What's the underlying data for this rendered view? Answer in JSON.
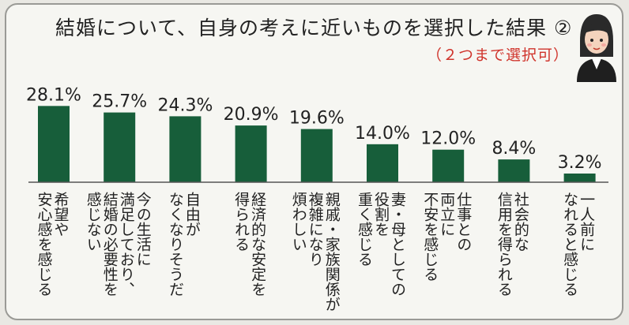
{
  "title": "結婚について、自身の考えに近いものを選択した結果 ②",
  "subtitle": "（２つまで選択可）",
  "illustration": "person-illustration",
  "chart_data": {
    "type": "bar",
    "title": "結婚について、自身の考えに近いものを選択した結果 ②",
    "subtitle": "（２つまで選択可）",
    "xlabel": "",
    "ylabel": "",
    "ylim": [
      0,
      30
    ],
    "grid": false,
    "legend": "none",
    "bar_color": "#175e3a",
    "categories": [
      "希望や安心感を感じる",
      "今の生活に満足しており、結婚の必要性を感じない",
      "自由がなくなりそうだ",
      "経済的な安定を得られる",
      "親戚・家族関係が複雑になり煩わしい",
      "妻・母としての役割を重く感じる",
      "仕事との両立に不安を感じる",
      "社会的な信用を得られる",
      "一人前になれると感じる"
    ],
    "values": [
      28.1,
      25.7,
      24.3,
      20.9,
      19.6,
      14.0,
      12.0,
      8.4,
      3.2
    ],
    "value_labels": [
      "28.1%",
      "25.7%",
      "24.3%",
      "20.9%",
      "19.6%",
      "14.0%",
      "12.0%",
      "8.4%",
      "3.2%"
    ],
    "label_columns": [
      [
        "希望や",
        "安心感を感じる"
      ],
      [
        "今の生活に",
        "満足しており、",
        "結婚の必要性を",
        "感じない"
      ],
      [
        "自由が",
        "なくなりそうだ"
      ],
      [
        "経済的な安定を",
        "得られる"
      ],
      [
        "親戚・家族関係が",
        "複雑になり",
        "煩わしい"
      ],
      [
        "妻・母としての",
        "役割を",
        "重く感じる"
      ],
      [
        "仕事との",
        "両立に",
        "不安を感じる"
      ],
      [
        "社会的な",
        "信用を得られる"
      ],
      [
        "一人前に",
        "なれると感じる"
      ]
    ]
  }
}
